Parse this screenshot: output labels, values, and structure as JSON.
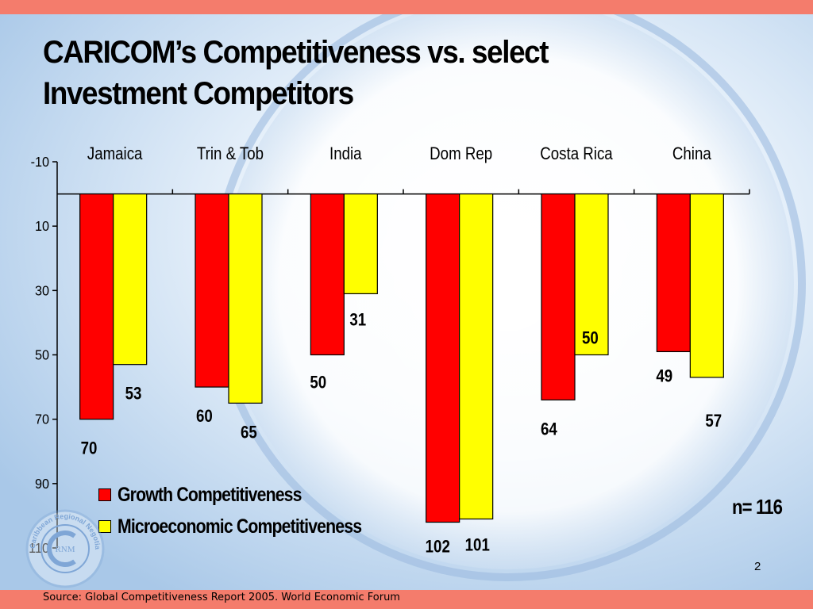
{
  "slide": {
    "title_line1": "CARICOM’s Competitiveness vs. select",
    "title_line2": "Investment Competitors",
    "n_label": "n= 116",
    "slide_number": "2",
    "source": "Source: Global Competitiveness Report 2005. World Economic Forum",
    "logo_text": "Caribbean Regional Negotiating Machinery",
    "logo_initials": "RNM"
  },
  "colors": {
    "top_bar": "#f47c6c",
    "series1": "#ff0000",
    "series2": "#ffff00"
  },
  "chart_data": {
    "type": "bar",
    "orientation": "vertical-inverted",
    "categories": [
      "Jamaica",
      "Trin & Tob",
      "India",
      "Dom Rep",
      "Costa Rica",
      "China"
    ],
    "series": [
      {
        "name": "Growth Competitiveness",
        "values": [
          70,
          60,
          50,
          102,
          64,
          49
        ]
      },
      {
        "name": "Microeconomic Competitiveness",
        "values": [
          53,
          65,
          31,
          101,
          50,
          57
        ]
      }
    ],
    "y_ticks": [
      "-10",
      "10",
      "30",
      "50",
      "70",
      "90",
      "110"
    ],
    "y_tick_values": [
      -10,
      10,
      30,
      50,
      70,
      90,
      110
    ],
    "ylim": [
      -10,
      110
    ],
    "baseline": 0,
    "y_inverted": true,
    "category_labels_position": "top",
    "legend_position": "bottom-left",
    "grid": false
  }
}
